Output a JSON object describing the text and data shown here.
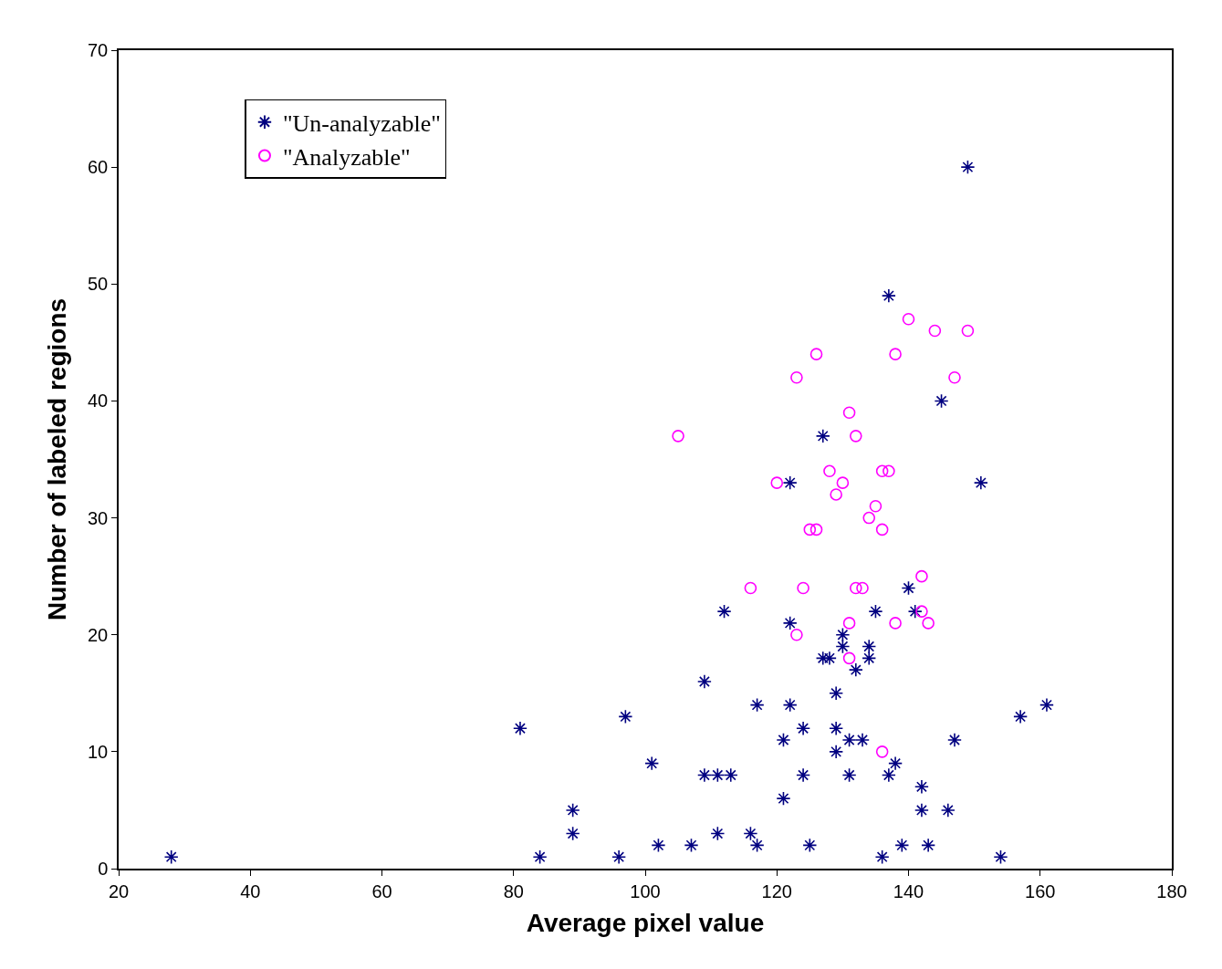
{
  "chart_data": {
    "type": "scatter",
    "xlabel": "Average pixel value",
    "ylabel": "Number of labeled regions",
    "xlim": [
      20,
      180
    ],
    "xticks": [
      20,
      40,
      60,
      80,
      100,
      120,
      140,
      160,
      180
    ],
    "ylim": [
      0,
      70
    ],
    "yticks": [
      0,
      10,
      20,
      30,
      40,
      50,
      60,
      70
    ],
    "legend": "top left",
    "series": [
      {
        "name": "\"Un-analyzable\"",
        "color": "#000080",
        "marker": "cross",
        "x": [
          28,
          81,
          84,
          89,
          89,
          96,
          97,
          101,
          102,
          107,
          109,
          109,
          111,
          111,
          113,
          112,
          116,
          117,
          117,
          121,
          121,
          122,
          122,
          122,
          124,
          124,
          125,
          127,
          127,
          128,
          129,
          129,
          129,
          130,
          130,
          131,
          131,
          132,
          133,
          134,
          134,
          135,
          136,
          137,
          137,
          138,
          139,
          140,
          141,
          142,
          142,
          143,
          145,
          146,
          147,
          149,
          151,
          154,
          157,
          161
        ],
        "values": [
          1,
          12,
          1,
          5,
          3,
          1,
          13,
          9,
          2,
          2,
          16,
          8,
          3,
          8,
          8,
          22,
          3,
          14,
          2,
          6,
          11,
          21,
          14,
          33,
          12,
          8,
          2,
          37,
          18,
          18,
          15,
          12,
          10,
          20,
          19,
          8,
          11,
          17,
          11,
          19,
          18,
          22,
          1,
          49,
          8,
          9,
          2,
          24,
          22,
          7,
          5,
          2,
          40,
          5,
          11,
          60,
          33,
          1,
          13,
          14
        ]
      },
      {
        "name": "\"Analyzable\"",
        "color": "#ff00ff",
        "marker": "circle",
        "x": [
          105,
          116,
          120,
          123,
          123,
          124,
          125,
          126,
          126,
          128,
          129,
          130,
          131,
          131,
          131,
          132,
          132,
          133,
          134,
          135,
          136,
          137,
          136,
          136,
          138,
          138,
          140,
          142,
          142,
          143,
          144,
          147,
          149
        ],
        "values": [
          37,
          24,
          33,
          42,
          20,
          24,
          29,
          29,
          44,
          34,
          32,
          33,
          39,
          21,
          18,
          37,
          24,
          24,
          30,
          31,
          34,
          34,
          29,
          10,
          44,
          21,
          47,
          25,
          22,
          21,
          46,
          42,
          46
        ]
      }
    ]
  }
}
